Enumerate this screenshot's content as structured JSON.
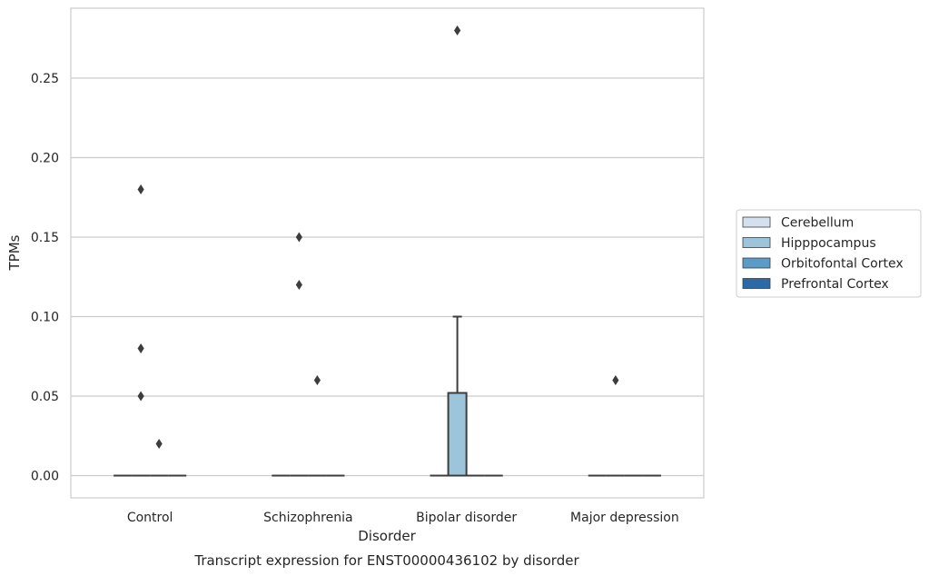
{
  "chart_data": {
    "type": "box",
    "title": "",
    "caption": "Transcript expression for ENST00000436102 by disorder",
    "xlabel": "Disorder",
    "ylabel": "TPMs",
    "categories": [
      "Control",
      "Schizophrenia",
      "Bipolar disorder",
      "Major depression"
    ],
    "ylim": [
      -0.014,
      0.294
    ],
    "yticks": [
      0.0,
      0.05,
      0.1,
      0.15,
      0.2,
      0.25
    ],
    "ytick_labels": [
      "0.00",
      "0.05",
      "0.10",
      "0.15",
      "0.20",
      "0.25"
    ],
    "grid": "horizontal",
    "legend_position": "right",
    "series": [
      {
        "name": "Cerebellum",
        "color": "#d3e1ee",
        "boxes": [
          {
            "q1": 0,
            "median": 0,
            "q3": 0,
            "whisker_low": 0,
            "whisker_high": 0
          },
          {
            "q1": 0,
            "median": 0,
            "q3": 0,
            "whisker_low": 0,
            "whisker_high": 0
          },
          {
            "q1": 0,
            "median": 0,
            "q3": 0,
            "whisker_low": 0,
            "whisker_high": 0
          },
          {
            "q1": 0,
            "median": 0,
            "q3": 0,
            "whisker_low": 0,
            "whisker_high": 0
          }
        ],
        "outliers": [
          [],
          [],
          [],
          []
        ]
      },
      {
        "name": "Hipppocampus",
        "color": "#9cc5dc",
        "boxes": [
          {
            "q1": 0,
            "median": 0,
            "q3": 0,
            "whisker_low": 0,
            "whisker_high": 0
          },
          {
            "q1": 0,
            "median": 0,
            "q3": 0,
            "whisker_low": 0,
            "whisker_high": 0
          },
          {
            "q1": 0,
            "median": 0,
            "q3": 0.052,
            "whisker_low": 0,
            "whisker_high": 0.1
          },
          {
            "q1": 0,
            "median": 0,
            "q3": 0,
            "whisker_low": 0,
            "whisker_high": 0
          }
        ],
        "outliers": [
          [
            0.05,
            0.18,
            0.08
          ],
          [
            0.15,
            0.12
          ],
          [
            0.28
          ],
          [
            0.06
          ]
        ]
      },
      {
        "name": "Orbitofontal Cortex",
        "color": "#5a9bc8",
        "boxes": [
          {
            "q1": 0,
            "median": 0,
            "q3": 0,
            "whisker_low": 0,
            "whisker_high": 0
          },
          {
            "q1": 0,
            "median": 0,
            "q3": 0,
            "whisker_low": 0,
            "whisker_high": 0
          },
          {
            "q1": 0,
            "median": 0,
            "q3": 0,
            "whisker_low": 0,
            "whisker_high": 0
          },
          {
            "q1": 0,
            "median": 0,
            "q3": 0,
            "whisker_low": 0,
            "whisker_high": 0
          }
        ],
        "outliers": [
          [
            0.02
          ],
          [
            0.06
          ],
          [],
          []
        ]
      },
      {
        "name": "Prefrontal Cortex",
        "color": "#2b6aa6",
        "boxes": [
          {
            "q1": 0,
            "median": 0,
            "q3": 0,
            "whisker_low": 0,
            "whisker_high": 0
          },
          {
            "q1": 0,
            "median": 0,
            "q3": 0,
            "whisker_low": 0,
            "whisker_high": 0
          },
          {
            "q1": 0,
            "median": 0,
            "q3": 0,
            "whisker_low": 0,
            "whisker_high": 0
          },
          {
            "q1": 0,
            "median": 0,
            "q3": 0,
            "whisker_low": 0,
            "whisker_high": 0
          }
        ],
        "outliers": [
          [],
          [],
          [],
          []
        ]
      }
    ],
    "colors": {
      "grid": "#cccccc",
      "frame": "#cccccc",
      "line": "#3d3d3d"
    }
  }
}
